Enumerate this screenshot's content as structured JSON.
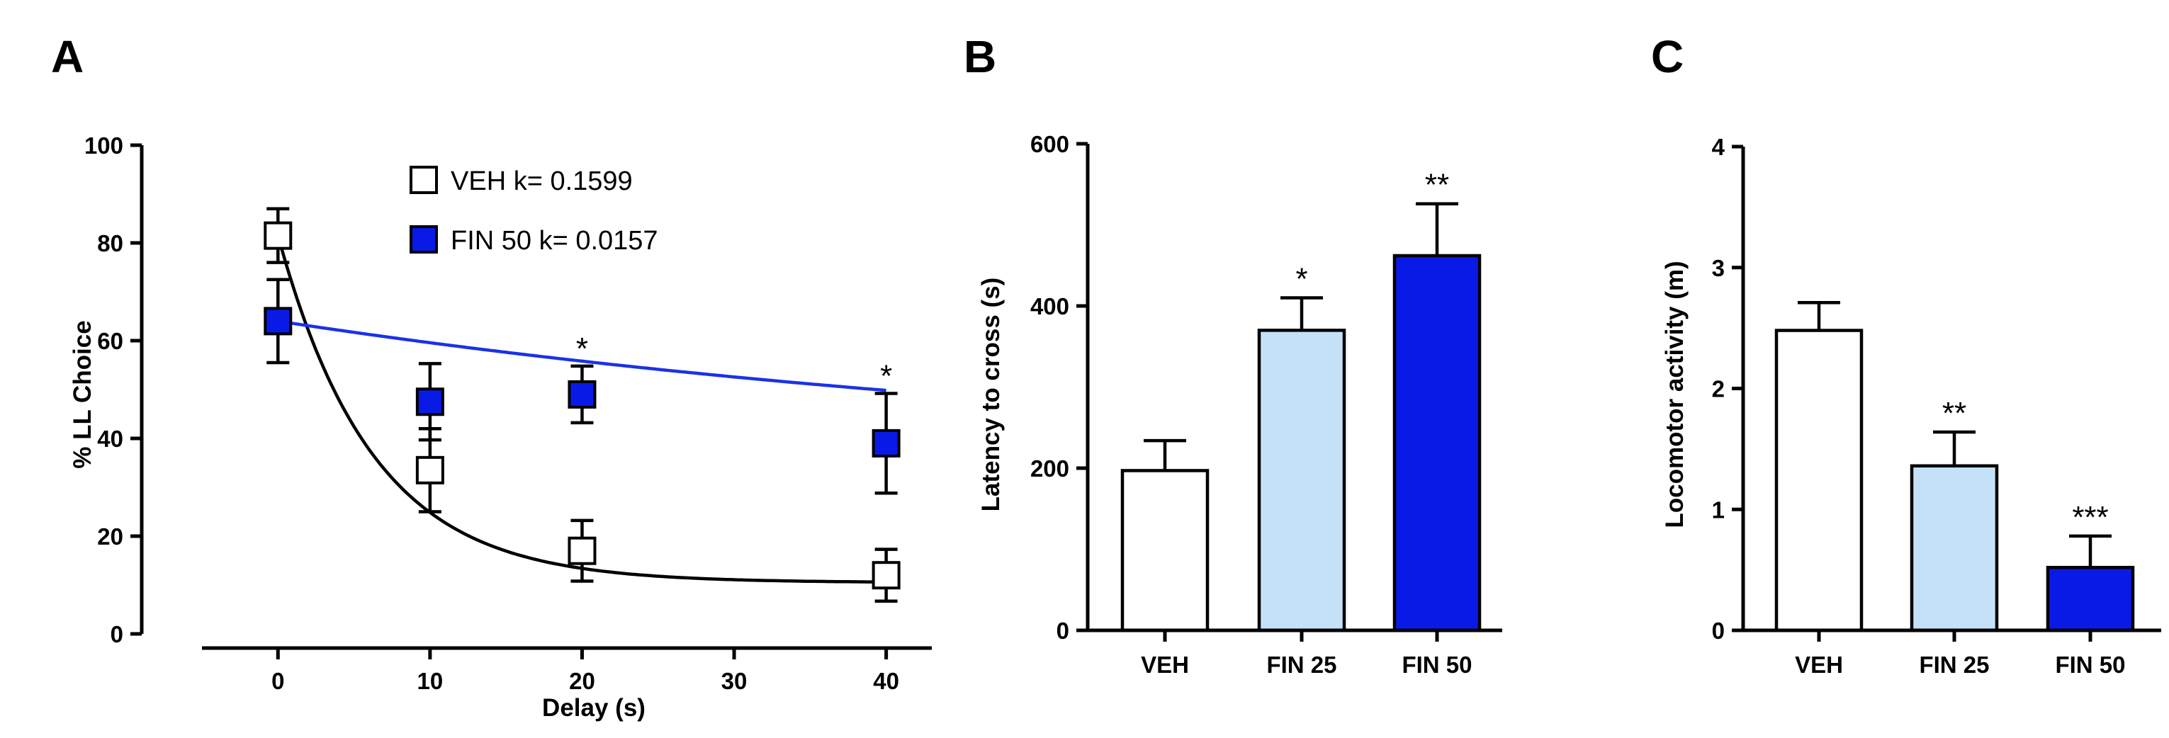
{
  "chart_data": [
    {
      "panel": "A",
      "type": "scatter",
      "xlabel": "Delay (s)",
      "ylabel": "% LL Choice",
      "xlim": [
        -5,
        43
      ],
      "ylim": [
        0,
        100
      ],
      "xticks": [
        0,
        10,
        20,
        30,
        40
      ],
      "yticks": [
        0,
        20,
        40,
        60,
        80,
        100
      ],
      "legend_position": "top-right",
      "series": [
        {
          "name": "VEH",
          "legend_label": "VEH k= 0.1599",
          "k": 0.1599,
          "fill": "#ffffff",
          "line_color": "#000000",
          "fit_asymptote": 10.5,
          "x": [
            0,
            10,
            20,
            40
          ],
          "values": [
            81.5,
            33.5,
            17,
            12
          ],
          "error": [
            5.5,
            8.5,
            6.2,
            5.3
          ],
          "sig": [
            "",
            "",
            "",
            ""
          ]
        },
        {
          "name": "FIN 50",
          "legend_label": "FIN 50 k= 0.0157",
          "k": 0.0157,
          "fill": "#0a1ae6",
          "line_color": "#1a32e6",
          "fit_asymptote": 33.6,
          "x": [
            0,
            10,
            20,
            40
          ],
          "values": [
            64,
            47.5,
            49,
            39
          ],
          "error": [
            8.5,
            7.8,
            5.8,
            10.2
          ],
          "sig": [
            "",
            "",
            "*",
            "*"
          ]
        }
      ]
    },
    {
      "panel": "B",
      "type": "bar",
      "xlabel": "",
      "ylabel": "Latency to cross (s)",
      "ylim": [
        0,
        600
      ],
      "yticks": [
        0,
        200,
        400,
        600
      ],
      "categories": [
        "VEH",
        "FIN 25",
        "FIN 50"
      ],
      "values": [
        197,
        370,
        462
      ],
      "error": [
        37,
        40,
        64
      ],
      "colors": [
        "#ffffff",
        "#c4e1f8",
        "#0a1ae6"
      ],
      "sig": [
        "",
        "*",
        "**"
      ]
    },
    {
      "panel": "C",
      "type": "bar",
      "xlabel": "",
      "ylabel": "Locomotor activity (m)",
      "ylim": [
        0,
        4
      ],
      "yticks": [
        0,
        1,
        2,
        3,
        4
      ],
      "categories": [
        "VEH",
        "FIN 25",
        "FIN 50"
      ],
      "values": [
        2.48,
        1.36,
        0.52
      ],
      "error": [
        0.23,
        0.28,
        0.26
      ],
      "colors": [
        "#ffffff",
        "#c4e1f8",
        "#0a1ae6"
      ],
      "sig": [
        "",
        "**",
        "***"
      ]
    }
  ]
}
